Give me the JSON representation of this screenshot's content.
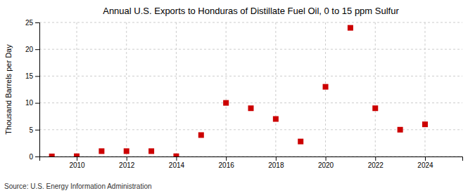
{
  "chart_data": {
    "type": "scatter",
    "title": "Annual U.S. Exports to Honduras of Distillate Fuel Oil, 0 to 15 ppm Sulfur",
    "y_label": "Thousand Barrels per Day",
    "annotation": "Source: U.S. Energy Information Administration",
    "x": [
      2009,
      2010,
      2011,
      2012,
      2013,
      2014,
      2015,
      2016,
      2017,
      2018,
      2019,
      2020,
      2021,
      2022,
      2023,
      2024
    ],
    "values": [
      0.02,
      0.05,
      1.0,
      1.0,
      1.0,
      0.05,
      4.0,
      10.0,
      9.0,
      7.0,
      2.8,
      13.0,
      24.0,
      9.0,
      5.0,
      6.0
    ],
    "color": "#cc0000",
    "marker": "square",
    "xlim": [
      2008.5,
      2025.5
    ],
    "ylim": [
      0,
      25
    ],
    "xticks": [
      2010,
      2012,
      2014,
      2016,
      2018,
      2020,
      2022,
      2024
    ],
    "yticks": [
      0,
      5,
      10,
      15,
      20,
      25
    ],
    "grid": true
  }
}
